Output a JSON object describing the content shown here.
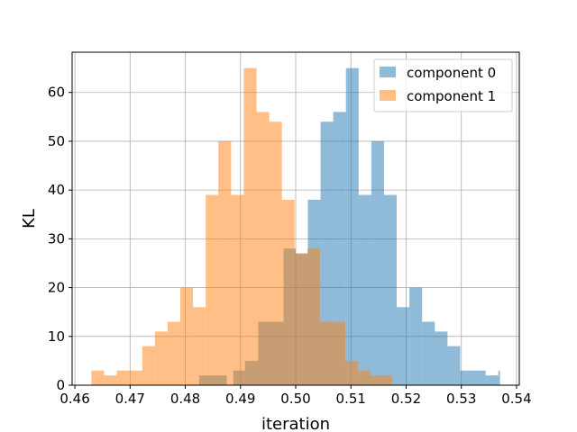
{
  "chart_data": {
    "type": "bar",
    "subtype": "histogram",
    "title": "",
    "xlabel": "iteration",
    "ylabel": "KL",
    "xlim": [
      0.4595,
      0.5405
    ],
    "ylim": [
      0,
      68.25
    ],
    "xticks": [
      0.46,
      0.47,
      0.48,
      0.49,
      0.5,
      0.51,
      0.52,
      0.53,
      0.54
    ],
    "xtick_labels": [
      "0.46",
      "0.47",
      "0.48",
      "0.49",
      "0.50",
      "0.51",
      "0.52",
      "0.53",
      "0.54"
    ],
    "yticks": [
      0,
      10,
      20,
      30,
      40,
      50,
      60
    ],
    "ytick_labels": [
      "0",
      "10",
      "20",
      "30",
      "40",
      "50",
      "60"
    ],
    "grid": true,
    "legend": {
      "position": "top-right"
    },
    "series": [
      {
        "name": "component 0",
        "color": "#1f77b4",
        "alpha": 0.5,
        "bins": [
          {
            "x0": 0.4825,
            "x1": 0.4875,
            "y": 2
          },
          {
            "x0": 0.4887,
            "x1": 0.4908,
            "y": 3
          },
          {
            "x0": 0.4908,
            "x1": 0.4932,
            "y": 5
          },
          {
            "x0": 0.4932,
            "x1": 0.4955,
            "y": 13
          },
          {
            "x0": 0.4955,
            "x1": 0.4978,
            "y": 13
          },
          {
            "x0": 0.4978,
            "x1": 0.5,
            "y": 28
          },
          {
            "x0": 0.5,
            "x1": 0.5022,
            "y": 27
          },
          {
            "x0": 0.5022,
            "x1": 0.5045,
            "y": 38
          },
          {
            "x0": 0.5045,
            "x1": 0.5068,
            "y": 54
          },
          {
            "x0": 0.5068,
            "x1": 0.5091,
            "y": 56
          },
          {
            "x0": 0.5091,
            "x1": 0.5114,
            "y": 65
          },
          {
            "x0": 0.5114,
            "x1": 0.5137,
            "y": 39
          },
          {
            "x0": 0.5137,
            "x1": 0.516,
            "y": 50
          },
          {
            "x0": 0.516,
            "x1": 0.5183,
            "y": 39
          },
          {
            "x0": 0.5183,
            "x1": 0.5206,
            "y": 16
          },
          {
            "x0": 0.5206,
            "x1": 0.5229,
            "y": 20
          },
          {
            "x0": 0.5229,
            "x1": 0.5252,
            "y": 13
          },
          {
            "x0": 0.5252,
            "x1": 0.5275,
            "y": 11
          },
          {
            "x0": 0.5275,
            "x1": 0.5298,
            "y": 8
          },
          {
            "x0": 0.5298,
            "x1": 0.5321,
            "y": 3
          },
          {
            "x0": 0.5321,
            "x1": 0.5344,
            "y": 3
          },
          {
            "x0": 0.5344,
            "x1": 0.5367,
            "y": 2
          },
          {
            "x0": 0.5367,
            "x1": 0.537,
            "y": 3
          }
        ]
      },
      {
        "name": "component 1",
        "color": "#ff7f0e",
        "alpha": 0.5,
        "bins": [
          {
            "x0": 0.463,
            "x1": 0.4653,
            "y": 3
          },
          {
            "x0": 0.4653,
            "x1": 0.4676,
            "y": 2
          },
          {
            "x0": 0.4676,
            "x1": 0.4699,
            "y": 3
          },
          {
            "x0": 0.4699,
            "x1": 0.4722,
            "y": 3
          },
          {
            "x0": 0.4722,
            "x1": 0.4745,
            "y": 8
          },
          {
            "x0": 0.4745,
            "x1": 0.4768,
            "y": 11
          },
          {
            "x0": 0.4768,
            "x1": 0.4791,
            "y": 13
          },
          {
            "x0": 0.4791,
            "x1": 0.4814,
            "y": 20
          },
          {
            "x0": 0.4814,
            "x1": 0.4837,
            "y": 16
          },
          {
            "x0": 0.4837,
            "x1": 0.486,
            "y": 39
          },
          {
            "x0": 0.486,
            "x1": 0.4883,
            "y": 50
          },
          {
            "x0": 0.4883,
            "x1": 0.4906,
            "y": 39
          },
          {
            "x0": 0.4906,
            "x1": 0.4929,
            "y": 65
          },
          {
            "x0": 0.4929,
            "x1": 0.4952,
            "y": 56
          },
          {
            "x0": 0.4952,
            "x1": 0.4975,
            "y": 54
          },
          {
            "x0": 0.4975,
            "x1": 0.4998,
            "y": 38
          },
          {
            "x0": 0.4998,
            "x1": 0.5021,
            "y": 27
          },
          {
            "x0": 0.5021,
            "x1": 0.5044,
            "y": 28
          },
          {
            "x0": 0.5044,
            "x1": 0.5067,
            "y": 13
          },
          {
            "x0": 0.5067,
            "x1": 0.509,
            "y": 13
          },
          {
            "x0": 0.509,
            "x1": 0.5113,
            "y": 5
          },
          {
            "x0": 0.5113,
            "x1": 0.5136,
            "y": 3
          },
          {
            "x0": 0.5136,
            "x1": 0.5175,
            "y": 2
          }
        ]
      }
    ]
  }
}
